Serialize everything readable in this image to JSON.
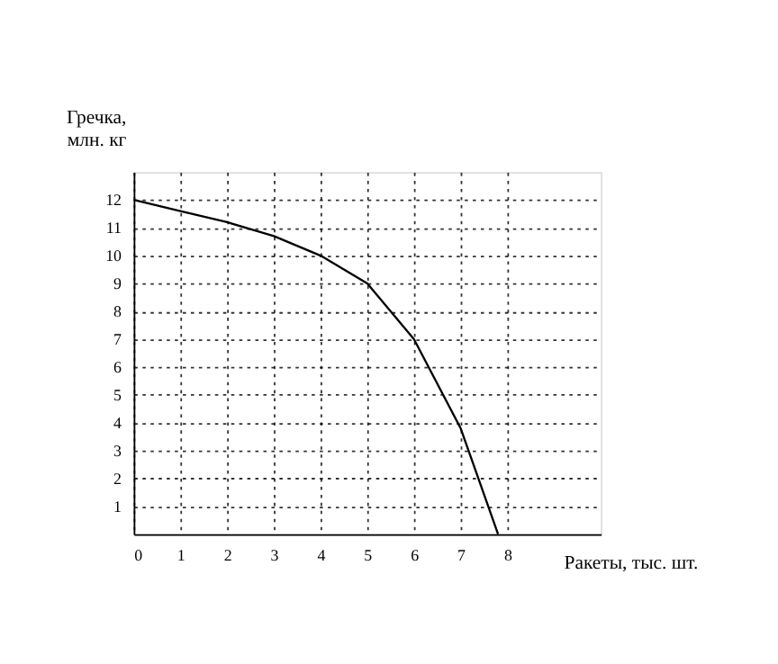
{
  "chart_data": {
    "type": "line",
    "xlabel": "Ракеты, тыс. шт.",
    "ylabel": "Гречка, млн. кг",
    "x": [
      0,
      1,
      2,
      3,
      4,
      5,
      6,
      7,
      7.8
    ],
    "series": [
      {
        "color": "#000000",
        "values": [
          12,
          11.6,
          11.2,
          10.7,
          10,
          9,
          7,
          3.8,
          0
        ]
      }
    ],
    "xlim": [
      0,
      10
    ],
    "ylim": [
      0,
      13
    ],
    "xticks": [
      0,
      1,
      2,
      3,
      4,
      5,
      6,
      7,
      8
    ],
    "yticks": [
      1,
      2,
      3,
      4,
      5,
      6,
      7,
      8,
      9,
      10,
      11,
      12
    ],
    "grid": true,
    "marker": "none",
    "line_style": "solid",
    "legend": false
  }
}
